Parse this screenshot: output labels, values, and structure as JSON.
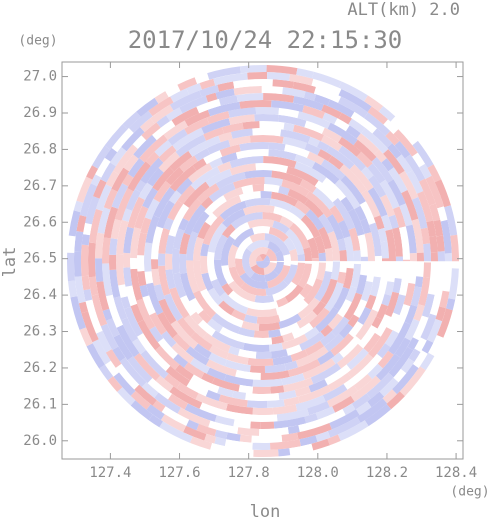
{
  "chart_data": {
    "type": "ppi",
    "title": "2017/10/24 22:15:30",
    "altitude_label": "ALT(km) 2.0",
    "x_label": "lon",
    "y_label": "lat",
    "x_unit": "(deg)",
    "y_unit": "(deg)",
    "xlim": [
      127.26,
      128.42
    ],
    "ylim": [
      25.95,
      27.04
    ],
    "xticks": [
      127.4,
      127.6,
      127.8,
      {
        "value": 128.0,
        "label": "128.0"
      },
      128.2,
      128.4
    ],
    "yticks": [
      {
        "value": 26.0,
        "label": "26.0"
      },
      26.1,
      26.2,
      26.3,
      26.4,
      26.5,
      26.6,
      26.7,
      26.8,
      26.9,
      {
        "value": 27.0,
        "label": "27.0"
      }
    ]
  }
}
